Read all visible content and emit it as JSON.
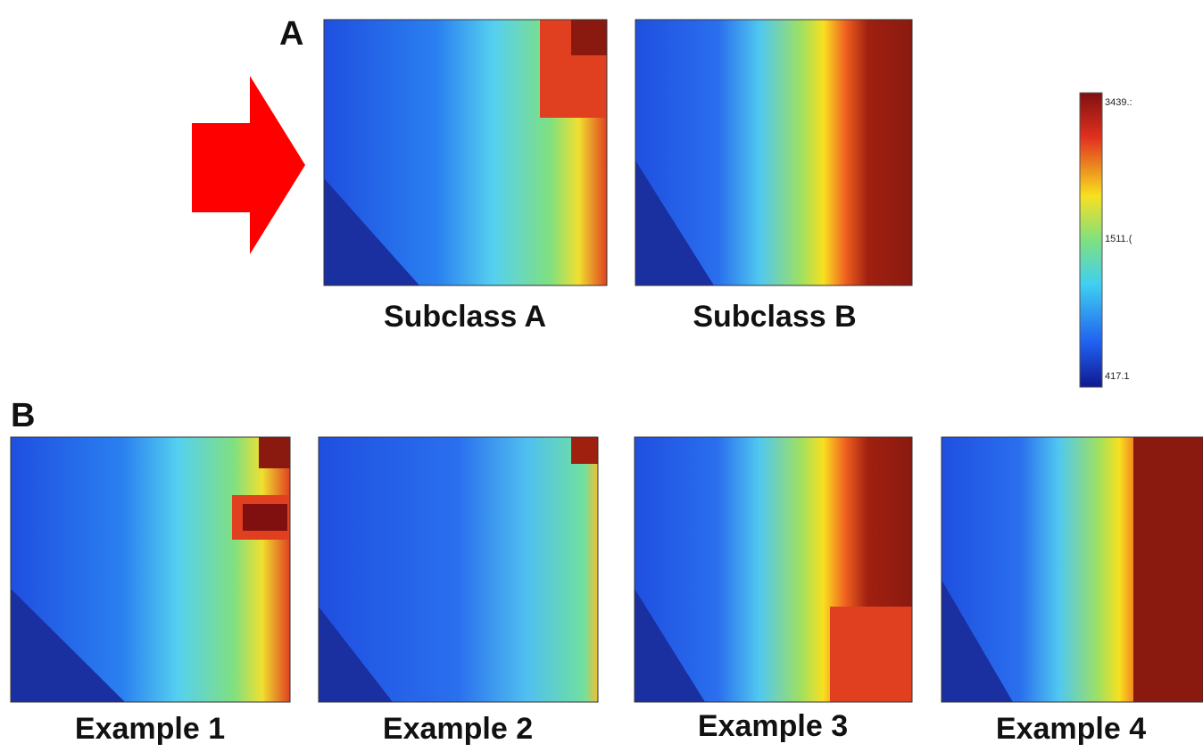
{
  "panel_a": {
    "label": "A",
    "images": [
      {
        "caption": "Subclass A"
      },
      {
        "caption": "Subclass B"
      }
    ]
  },
  "panel_b": {
    "label": "B",
    "images": [
      {
        "caption": "Example 1"
      },
      {
        "caption": "Example 2"
      },
      {
        "caption": "Example 3"
      },
      {
        "caption": "Example 4"
      }
    ]
  },
  "colorbar": {
    "labels": [
      "3439.:",
      "1511.(",
      "417.1"
    ]
  }
}
